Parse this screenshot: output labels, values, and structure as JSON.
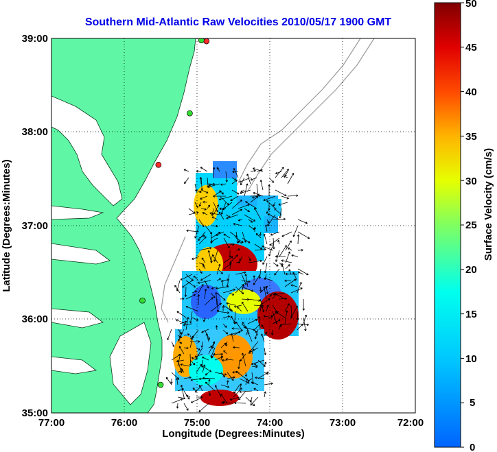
{
  "title": "Southern Mid-Atlantic Raw Velocities 2010/05/17 1900 GMT",
  "x_axis": {
    "label": "Longitude (Degrees:Minutes)",
    "ticks": [
      "77:00",
      "76:00",
      "75:00",
      "74:00",
      "73:00",
      "72:00"
    ]
  },
  "y_axis": {
    "label": "Latitude (Degrees:Minutes)",
    "ticks": [
      "39:00",
      "38:00",
      "37:00",
      "36:00",
      "35:00"
    ]
  },
  "colorbar": {
    "label": "Surface Velocity (cm/s)",
    "ticks": [
      "50",
      "45",
      "40",
      "35",
      "30",
      "25",
      "20",
      "15",
      "10",
      "5",
      "0"
    ],
    "range": [
      0,
      50
    ],
    "colormap": "jet"
  },
  "map": {
    "lon_range": [
      -77,
      -72
    ],
    "lat_range": [
      35,
      39
    ],
    "land_color": "#5ff7a6",
    "grid": "dotted",
    "station_markers": [
      {
        "lon": -74.87,
        "lat": 38.97,
        "color": "#ff2a2a"
      },
      {
        "lon": -74.94,
        "lat": 38.98,
        "color": "#33dd33"
      },
      {
        "lon": -75.1,
        "lat": 38.2,
        "color": "#33dd33"
      },
      {
        "lon": -75.53,
        "lat": 37.65,
        "color": "#ff2a2a"
      },
      {
        "lon": -75.75,
        "lat": 36.2,
        "color": "#33dd33"
      },
      {
        "lon": -75.5,
        "lat": 35.3,
        "color": "#33dd33"
      }
    ]
  }
}
